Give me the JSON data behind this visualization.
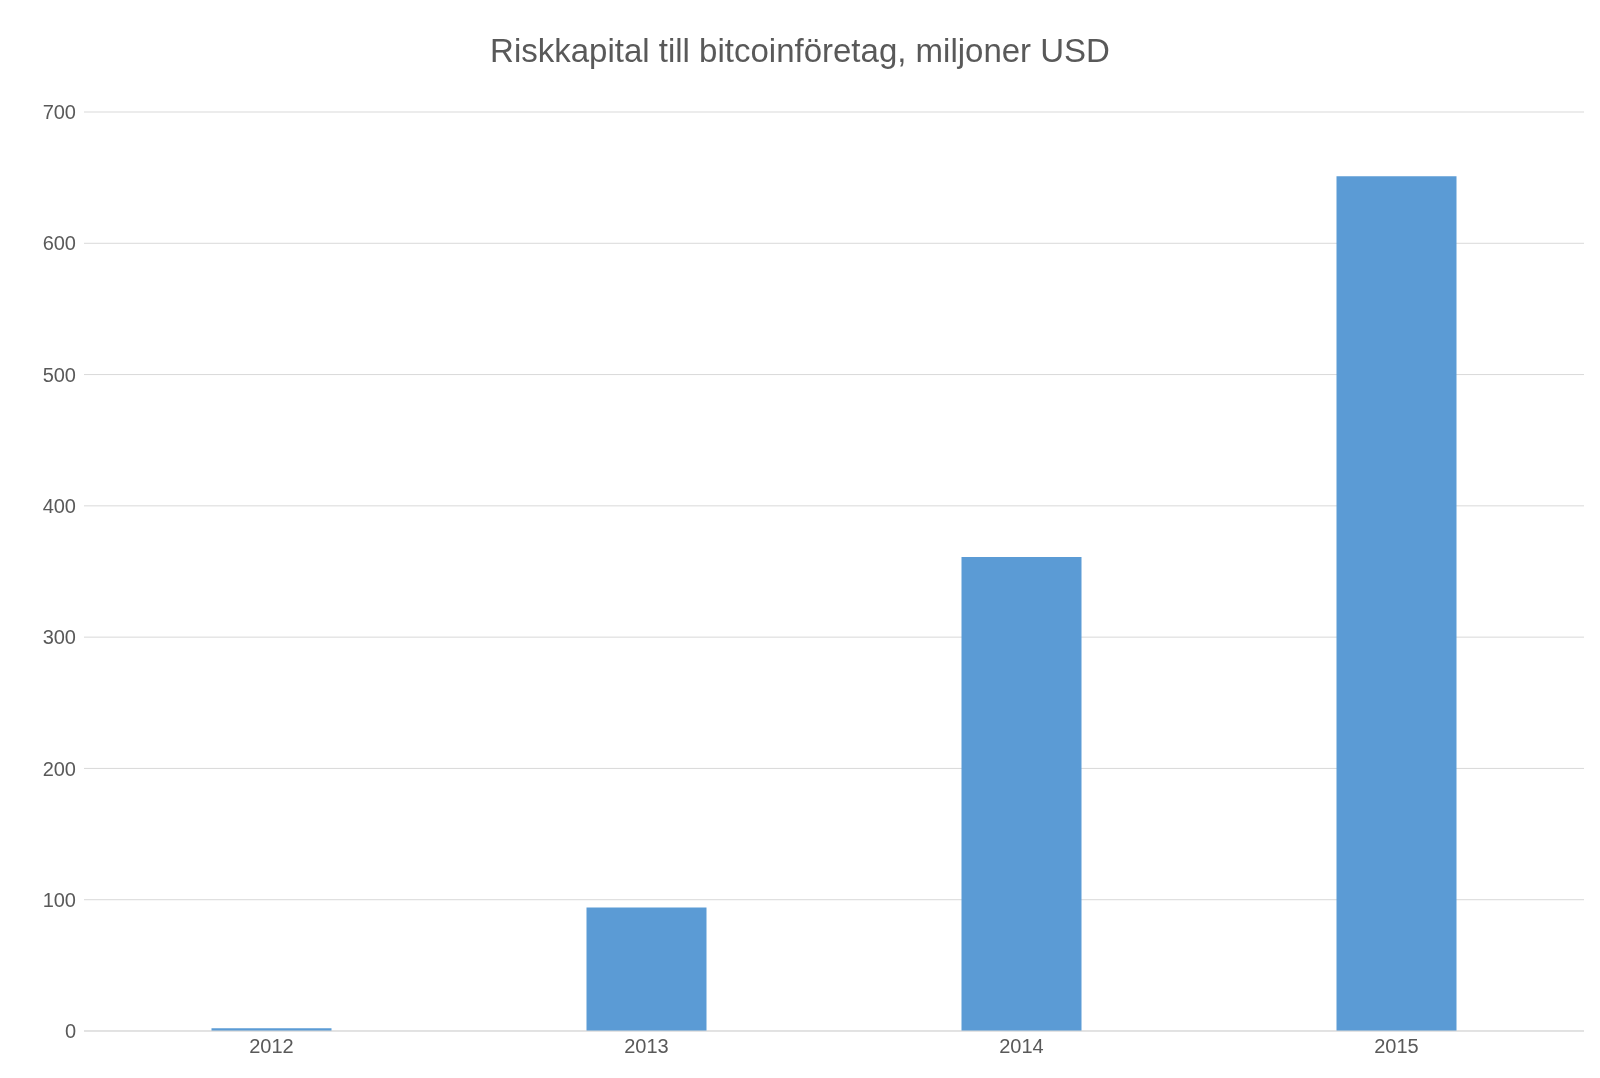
{
  "chart_data": {
    "type": "bar",
    "title": "Riskkapital till bitcoinföretag, miljoner USD",
    "categories": [
      "2012",
      "2013",
      "2014",
      "2015"
    ],
    "values": [
      2,
      94,
      361,
      651
    ],
    "color": "#5b9bd5",
    "ylim": [
      0,
      700
    ],
    "yticks": [
      0,
      100,
      200,
      300,
      400,
      500,
      600,
      700
    ],
    "grid": "y"
  }
}
